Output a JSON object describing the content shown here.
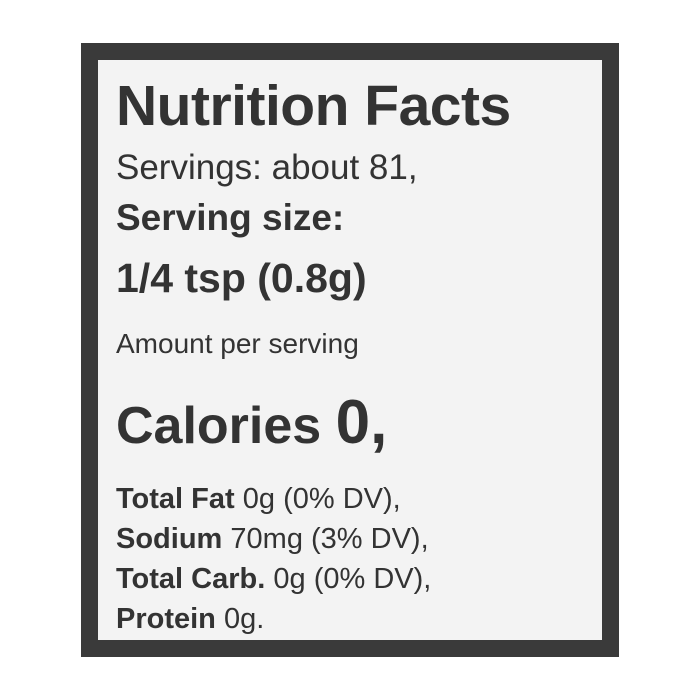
{
  "label": {
    "title": "Nutrition Facts",
    "servings": "Servings: about 81,",
    "serving_size_label": "Serving size:",
    "serving_size_value": "1/4 tsp (0.8g)",
    "amount_per_serving": "Amount per serving",
    "calories_label": "Calories",
    "calories_value": "0,",
    "nutrients": [
      {
        "name": "Total Fat",
        "value": "0g (0% DV),"
      },
      {
        "name": "Sodium",
        "value": "70mg (3% DV),"
      },
      {
        "name": "Total Carb.",
        "value": "0g (0% DV),"
      },
      {
        "name": "Protein",
        "value": "0g."
      }
    ]
  },
  "colors": {
    "border": "#3a3a3a",
    "panel": "#f3f3f3",
    "text": "#333333"
  }
}
